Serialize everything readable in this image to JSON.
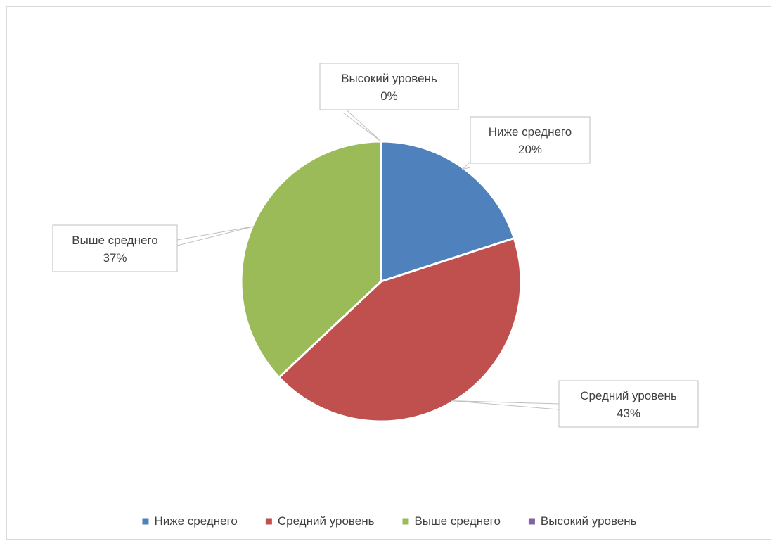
{
  "chart_data": {
    "type": "pie",
    "title": "",
    "categories": [
      "Ниже среднего",
      "Средний уровень",
      "Выше среднего",
      "Высокий уровень"
    ],
    "values": [
      20,
      43,
      37,
      0
    ],
    "value_labels": [
      "20%",
      "43%",
      "37%",
      "0%"
    ],
    "colors": [
      "#4f81bd",
      "#c0504d",
      "#9bbb59",
      "#8064a2"
    ],
    "legend": {
      "position": "bottom",
      "entries": [
        "Ниже среднего",
        "Средний уровень",
        "Выше среднего",
        "Высокий уровень"
      ]
    },
    "data_labels": "callouts with category name and percentage"
  }
}
